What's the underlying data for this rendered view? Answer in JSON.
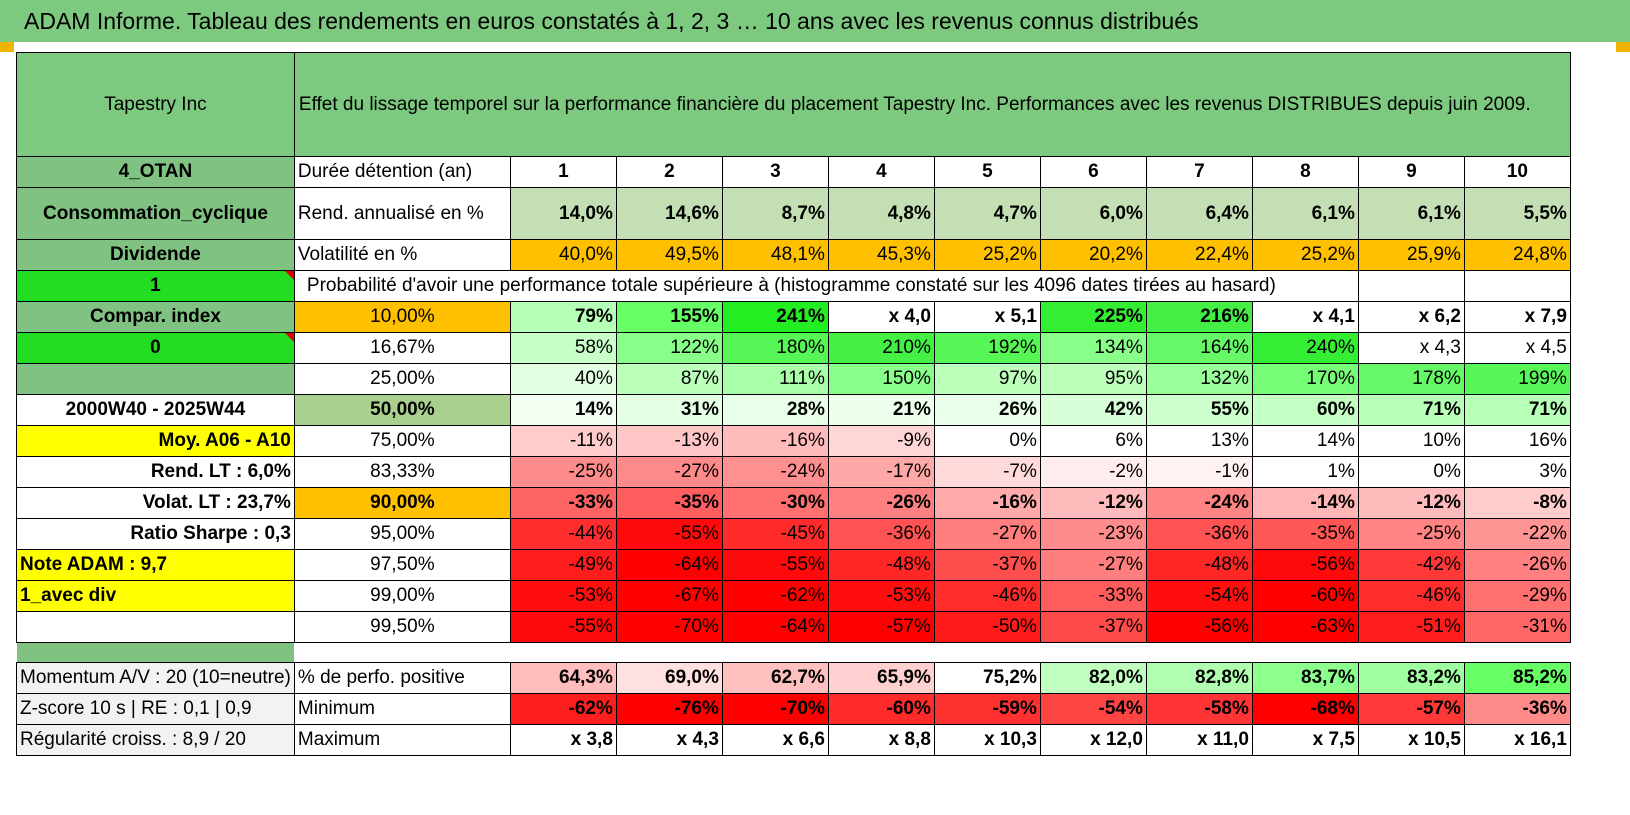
{
  "title": "ADAM Informe. Tableau des rendements en euros constatés à 1, 2, 3 … 10 ans avec les revenus connus distribués",
  "header": {
    "company": "Tapestry Inc",
    "description": "Effet du lissage temporel sur la performance financière du placement Tapestry Inc. Performances avec les revenus DISTRIBUES depuis juin 2009."
  },
  "left_labels": {
    "otan": "4_OTAN",
    "sector": "Consommation_cyclique",
    "dividende": "Dividende",
    "flag1": "1",
    "compar": "Compar. index",
    "flag0": "0",
    "blank": "",
    "period": "2000W40 - 2025W44",
    "moy": "Moy. A06 - A10",
    "rend_lt": "Rend. LT :    6,0%",
    "volat_lt": "Volat. LT :    23,7%",
    "sharpe": "Ratio Sharpe :     0,3",
    "note": "Note ADAM : 9,7",
    "avec_div": "1_avec div",
    "momentum": "Momentum A/V : 20 (10=neutre)",
    "zscore": "Z-score 10 s | RE : 0,1 | 0,9",
    "regularite": "Régularité croiss. : 8,9 / 20"
  },
  "row_labels": {
    "duree": "Durée détention (an)",
    "rend": "Rend. annualisé en %",
    "volat": "Volatilité en %",
    "proba": "Probabilité d'avoir une performance totale supérieure à (histogramme constaté sur les 4096 dates tirées au hasard)",
    "positive": "% de perfo. positive",
    "minimum": "Minimum",
    "maximum": "Maximum"
  },
  "years": [
    "1",
    "2",
    "3",
    "4",
    "5",
    "6",
    "7",
    "8",
    "9",
    "10"
  ],
  "rend": [
    "14,0%",
    "14,6%",
    "8,7%",
    "4,8%",
    "4,7%",
    "6,0%",
    "6,4%",
    "6,1%",
    "6,1%",
    "5,5%"
  ],
  "volat": [
    "40,0%",
    "49,5%",
    "48,1%",
    "45,3%",
    "25,2%",
    "20,2%",
    "22,4%",
    "25,2%",
    "25,9%",
    "24,8%"
  ],
  "percentile_rows": [
    {
      "pct": "10,00%",
      "vals": [
        "79%",
        "155%",
        "241%",
        "x 4,0",
        "x 5,1",
        "225%",
        "216%",
        "x 4,1",
        "x 6,2",
        "x 7,9"
      ]
    },
    {
      "pct": "16,67%",
      "vals": [
        "58%",
        "122%",
        "180%",
        "210%",
        "192%",
        "134%",
        "164%",
        "240%",
        "x 4,3",
        "x 4,5"
      ]
    },
    {
      "pct": "25,00%",
      "vals": [
        "40%",
        "87%",
        "111%",
        "150%",
        "97%",
        "95%",
        "132%",
        "170%",
        "178%",
        "199%"
      ]
    },
    {
      "pct": "50,00%",
      "vals": [
        "14%",
        "31%",
        "28%",
        "21%",
        "26%",
        "42%",
        "55%",
        "60%",
        "71%",
        "71%"
      ]
    },
    {
      "pct": "75,00%",
      "vals": [
        "-11%",
        "-13%",
        "-16%",
        "-9%",
        "0%",
        "6%",
        "13%",
        "14%",
        "10%",
        "16%"
      ]
    },
    {
      "pct": "83,33%",
      "vals": [
        "-25%",
        "-27%",
        "-24%",
        "-17%",
        "-7%",
        "-2%",
        "-1%",
        "1%",
        "0%",
        "3%"
      ]
    },
    {
      "pct": "90,00%",
      "vals": [
        "-33%",
        "-35%",
        "-30%",
        "-26%",
        "-16%",
        "-12%",
        "-24%",
        "-14%",
        "-12%",
        "-8%"
      ]
    },
    {
      "pct": "95,00%",
      "vals": [
        "-44%",
        "-55%",
        "-45%",
        "-36%",
        "-27%",
        "-23%",
        "-36%",
        "-35%",
        "-25%",
        "-22%"
      ]
    },
    {
      "pct": "97,50%",
      "vals": [
        "-49%",
        "-64%",
        "-55%",
        "-48%",
        "-37%",
        "-27%",
        "-48%",
        "-56%",
        "-42%",
        "-26%"
      ]
    },
    {
      "pct": "99,00%",
      "vals": [
        "-53%",
        "-67%",
        "-62%",
        "-53%",
        "-46%",
        "-33%",
        "-54%",
        "-60%",
        "-46%",
        "-29%"
      ]
    },
    {
      "pct": "99,50%",
      "vals": [
        "-55%",
        "-70%",
        "-64%",
        "-57%",
        "-50%",
        "-37%",
        "-56%",
        "-63%",
        "-51%",
        "-31%"
      ]
    }
  ],
  "positive": [
    "64,3%",
    "69,0%",
    "62,7%",
    "65,9%",
    "75,2%",
    "82,0%",
    "82,8%",
    "83,7%",
    "83,2%",
    "85,2%"
  ],
  "minimum": [
    "-62%",
    "-76%",
    "-70%",
    "-60%",
    "-59%",
    "-54%",
    "-58%",
    "-68%",
    "-57%",
    "-36%"
  ],
  "maximum": [
    "x 3,8",
    "x 4,3",
    "x 6,6",
    "x 8,8",
    "x 10,3",
    "x 12,0",
    "x 11,0",
    "x 7,5",
    "x 10,5",
    "x 16,1"
  ],
  "colors": {
    "header_green": "#7cc97f",
    "label_green": "#80c282",
    "bright_green": "#22dd22",
    "yellow": "#ffff00",
    "orange": "#ffc000",
    "rend_green": "#c4dfb4",
    "median_green": "#a9d08e"
  },
  "cell_colors": [
    [
      "#b6ffb6",
      "#66ff66",
      "#22ee22",
      "#ffffff",
      "#ffffff",
      "#33ee33",
      "#44ee44",
      "#ffffff",
      "#ffffff",
      "#ffffff"
    ],
    [
      "#c8ffc8",
      "#88ff88",
      "#55f655",
      "#44f044",
      "#55f655",
      "#88ff88",
      "#66f866",
      "#33ee33",
      "#ffffff",
      "#ffffff"
    ],
    [
      "#e2ffe2",
      "#bbffbb",
      "#a8ffa8",
      "#88ff88",
      "#bbffbb",
      "#bbffbb",
      "#99ff99",
      "#77fc77",
      "#66f866",
      "#55f655"
    ],
    [
      "#f4fff4",
      "#e4ffe4",
      "#e8ffe8",
      "#eeffee",
      "#eaffea",
      "#d8ffd8",
      "#ccffcc",
      "#c4ffc4",
      "#b8ffb8",
      "#b8ffb8"
    ],
    [
      "#ffcccc",
      "#ffc6c6",
      "#ffbbbb",
      "#ffd6d6",
      "#ffffff",
      "#ffffff",
      "#ffffff",
      "#ffffff",
      "#ffffff",
      "#ffffff"
    ],
    [
      "#ff8c8c",
      "#ff8a8a",
      "#ff9090",
      "#ffa8a8",
      "#ffdada",
      "#ffecec",
      "#fff2f2",
      "#ffffff",
      "#ffffff",
      "#ffffff"
    ],
    [
      "#ff6464",
      "#ff5e5e",
      "#ff7070",
      "#ff8080",
      "#ffaaaa",
      "#ffbbbb",
      "#ff8484",
      "#ffb6b6",
      "#ffbbbb",
      "#ffcccc"
    ],
    [
      "#ff2e2e",
      "#ff0a0a",
      "#ff2a2a",
      "#ff5252",
      "#ff7e7e",
      "#ff8c8c",
      "#ff5252",
      "#ff5656",
      "#ff8484",
      "#ff9494"
    ],
    [
      "#ff1c1c",
      "#ff0000",
      "#ff0a0a",
      "#ff2626",
      "#ff4e4e",
      "#ff7e7e",
      "#ff2626",
      "#ff0a0a",
      "#ff3838",
      "#ff8080"
    ],
    [
      "#ff0e0e",
      "#ff0000",
      "#ff0000",
      "#ff0e0e",
      "#ff2c2c",
      "#ff5c5c",
      "#ff0e0e",
      "#ff0000",
      "#ff2c2c",
      "#ff7070"
    ],
    [
      "#ff0a0a",
      "#ff0000",
      "#ff0000",
      "#ff0000",
      "#ff1a1a",
      "#ff4a4a",
      "#ff0000",
      "#ff0000",
      "#ff1c1c",
      "#ff6666"
    ]
  ],
  "positive_colors": [
    "#ffbdbd",
    "#ffe0e0",
    "#ffc0c0",
    "#ffd0d0",
    "#ffffff",
    "#c0ffc0",
    "#b0ffb0",
    "#8cff8c",
    "#a0ffa0",
    "#66ff66"
  ],
  "minimum_colors": [
    "#ff1e1e",
    "#ff0000",
    "#ff0000",
    "#ff2a2a",
    "#ff3030",
    "#ff4444",
    "#ff3434",
    "#ff0000",
    "#ff3838",
    "#ff8a8a"
  ]
}
